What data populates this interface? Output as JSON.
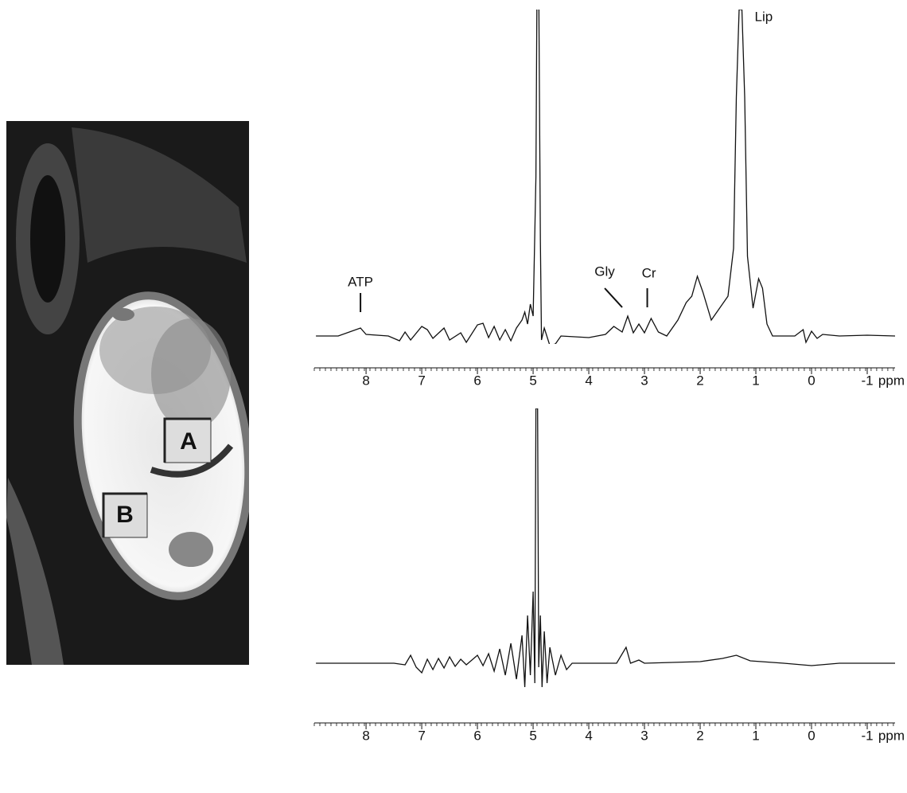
{
  "image": {
    "labels": [
      "A",
      "B"
    ]
  },
  "chart_data": [
    {
      "type": "line",
      "xlabel": "ppm",
      "xlim": [
        8.93,
        -1.5
      ],
      "ylim": [
        -10,
        410
      ],
      "xticks": [
        8,
        7,
        6,
        5,
        4,
        3,
        2,
        1,
        0,
        -1
      ],
      "xminor": 0.1,
      "color": "#111111",
      "annotations": [
        {
          "text": "ATP",
          "x": 8.1
        },
        {
          "text": "Gly",
          "x": 3.4
        },
        {
          "text": "Cr",
          "x": 2.95
        },
        {
          "text": "Lip",
          "x": 1.25
        }
      ],
      "x": [
        8.9,
        8.5,
        8.1,
        8.0,
        7.6,
        7.4,
        7.3,
        7.2,
        7.0,
        6.9,
        6.8,
        6.6,
        6.5,
        6.3,
        6.2,
        6.0,
        5.9,
        5.8,
        5.7,
        5.6,
        5.5,
        5.4,
        5.3,
        5.2,
        5.15,
        5.1,
        5.05,
        5.0,
        4.95,
        4.93,
        4.9,
        4.87,
        4.85,
        4.8,
        4.7,
        4.6,
        4.5,
        4.0,
        3.7,
        3.55,
        3.4,
        3.3,
        3.2,
        3.1,
        3.0,
        2.88,
        2.75,
        2.6,
        2.4,
        2.25,
        2.15,
        2.05,
        1.95,
        1.8,
        1.65,
        1.5,
        1.4,
        1.35,
        1.3,
        1.25,
        1.2,
        1.15,
        1.05,
        0.95,
        0.88,
        0.8,
        0.7,
        0.3,
        0.15,
        0.1,
        0.0,
        -0.1,
        -0.2,
        -0.5,
        -1.0,
        -1.5
      ],
      "values": [
        0,
        0,
        10,
        2,
        0,
        -6,
        5,
        -5,
        12,
        8,
        -3,
        10,
        -5,
        4,
        -8,
        14,
        16,
        -2,
        12,
        -5,
        8,
        -6,
        10,
        20,
        30,
        15,
        40,
        25,
        200,
        450,
        450,
        120,
        -5,
        10,
        -12,
        -10,
        0,
        -2,
        2,
        12,
        5,
        25,
        4,
        15,
        4,
        22,
        5,
        0,
        20,
        42,
        50,
        75,
        55,
        20,
        35,
        50,
        110,
        300,
        410,
        410,
        300,
        100,
        35,
        72,
        60,
        15,
        0,
        0,
        8,
        -8,
        6,
        -3,
        2,
        0,
        1,
        0
      ]
    },
    {
      "type": "line",
      "xlabel": "ppm",
      "xlim": [
        8.93,
        -1.5
      ],
      "ylim": [
        -30,
        320
      ],
      "xticks": [
        8,
        7,
        6,
        5,
        4,
        3,
        2,
        1,
        0,
        -1
      ],
      "xminor": 0.1,
      "color": "#111111",
      "x": [
        8.9,
        7.5,
        7.3,
        7.2,
        7.1,
        7.0,
        6.9,
        6.8,
        6.7,
        6.6,
        6.5,
        6.4,
        6.3,
        6.2,
        6.0,
        5.9,
        5.8,
        5.7,
        5.6,
        5.5,
        5.4,
        5.3,
        5.2,
        5.15,
        5.1,
        5.05,
        5.0,
        4.97,
        4.95,
        4.92,
        4.9,
        4.87,
        4.84,
        4.8,
        4.75,
        4.7,
        4.6,
        4.5,
        4.4,
        4.3,
        3.5,
        3.33,
        3.25,
        3.1,
        3.0,
        2.0,
        1.6,
        1.35,
        1.1,
        0.5,
        0.0,
        -0.5,
        -1.5
      ],
      "values": [
        0,
        0,
        -2,
        10,
        -5,
        -12,
        5,
        -8,
        6,
        -6,
        8,
        -4,
        5,
        -2,
        10,
        -3,
        12,
        -10,
        18,
        -15,
        25,
        -20,
        35,
        -30,
        60,
        -15,
        90,
        -25,
        320,
        320,
        -5,
        60,
        -30,
        40,
        -25,
        20,
        -15,
        10,
        -8,
        0,
        0,
        20,
        0,
        4,
        0,
        2,
        6,
        10,
        3,
        0,
        -3,
        0,
        0
      ]
    }
  ]
}
